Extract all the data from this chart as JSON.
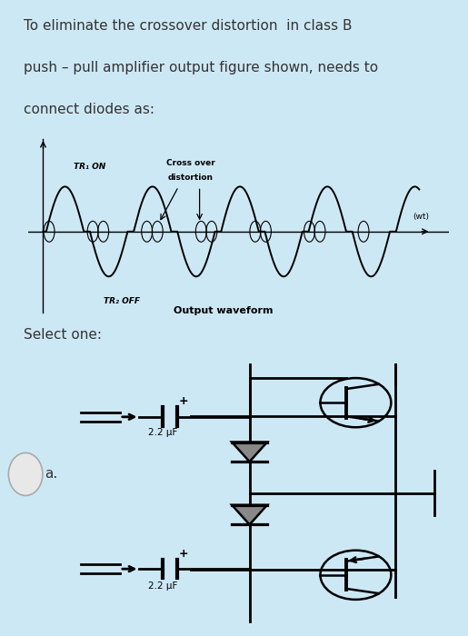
{
  "bg_color": "#cde8f5",
  "wave_bg": "#b0b0b0",
  "white_bg": "#ffffff",
  "question_line1": "To eliminate the crossover distortion  in class B",
  "question_line2": "push – pull amplifier output figure shown, needs to",
  "question_line3": "connect diodes as:",
  "select_one": "Select one:",
  "label_a": "a.",
  "cap_label": "2.2 μF",
  "tr1_on": "TR₁ ON",
  "tr2_off": "TR₂ OFF",
  "cross_over_line1": "Cross over",
  "cross_over_line2": "distortion",
  "output_waveform": "Output waveform",
  "wt_label": "(wt)",
  "fig_width": 5.15,
  "fig_height": 7.0,
  "dpi": 100
}
